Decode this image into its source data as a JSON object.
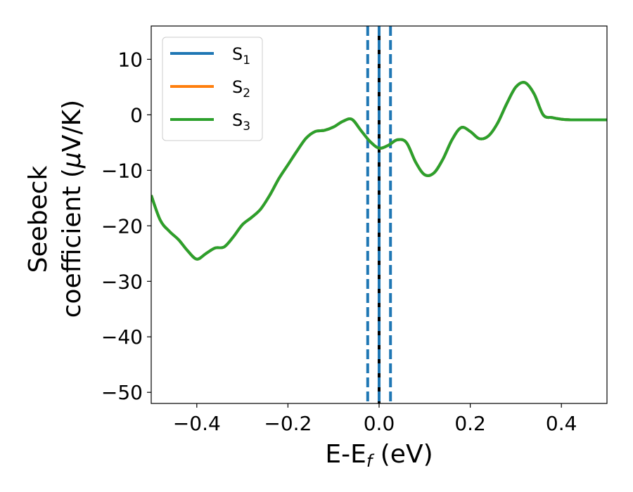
{
  "chart_data": {
    "type": "line",
    "xlim": [
      -0.5,
      0.5
    ],
    "ylim": [
      -52,
      16
    ],
    "x_ticks": [
      -0.4,
      -0.2,
      0.0,
      0.2,
      0.4
    ],
    "x_tick_labels": [
      "−0.4",
      "−0.2",
      "0.0",
      "0.2",
      "0.4"
    ],
    "y_ticks": [
      10,
      0,
      -10,
      -20,
      -30,
      -40,
      -50
    ],
    "y_tick_labels": [
      "10",
      "0",
      "−10",
      "−20",
      "−30",
      "−40",
      "−50"
    ],
    "xlabel_main": "E-E",
    "xlabel_sub": "f",
    "xlabel_unit": " (eV)",
    "ylabel_line1": "Seebeck",
    "ylabel_line2_pre": "coefficient  (",
    "ylabel_mu": "μ",
    "ylabel_line2_post": "V/K)",
    "grid": false,
    "legend_position": "top-left",
    "series": [
      {
        "name": "S",
        "sub": "1",
        "color": "#1f77b4",
        "x": [
          -0.5,
          -0.48,
          -0.46,
          -0.44,
          -0.42,
          -0.4,
          -0.38,
          -0.36,
          -0.34,
          -0.32,
          -0.3,
          -0.28,
          -0.26,
          -0.24,
          -0.22,
          -0.2,
          -0.18,
          -0.16,
          -0.14,
          -0.12,
          -0.1,
          -0.08,
          -0.06,
          -0.04,
          -0.02,
          0.0,
          0.02,
          0.04,
          0.06,
          0.08,
          0.1,
          0.12,
          0.14,
          0.16,
          0.18,
          0.2,
          0.22,
          0.24,
          0.26,
          0.28,
          0.3,
          0.32,
          0.34,
          0.36,
          0.38,
          0.4,
          0.42,
          0.44,
          0.46,
          0.48,
          0.5
        ],
        "y": [
          -14.5,
          -19.0,
          -21.0,
          -22.5,
          -24.5,
          -26.0,
          -25.0,
          -24.0,
          -23.8,
          -22.0,
          -19.8,
          -18.5,
          -17.0,
          -14.5,
          -11.5,
          -9.0,
          -6.5,
          -4.2,
          -3.0,
          -2.8,
          -2.2,
          -1.2,
          -0.8,
          -2.8,
          -4.8,
          -6.0,
          -5.5,
          -4.5,
          -5.0,
          -8.5,
          -10.8,
          -10.5,
          -8.0,
          -4.5,
          -2.3,
          -3.0,
          -4.3,
          -3.8,
          -1.5,
          2.0,
          5.0,
          5.8,
          3.8,
          0.0,
          -0.5,
          -0.8,
          -0.9,
          -0.9,
          -0.9,
          -0.9,
          -0.9
        ]
      },
      {
        "name": "S",
        "sub": "2",
        "color": "#ff7f0e"
      },
      {
        "name": "S",
        "sub": "3",
        "color": "#2ca02c"
      }
    ],
    "vlines": [
      {
        "x": -0.025,
        "style": "dashed",
        "color": "#1f77b4"
      },
      {
        "x": 0.0,
        "style": "solid",
        "color": "#000000"
      },
      {
        "x": 0.0,
        "style": "dashed",
        "color": "#1f77b4"
      },
      {
        "x": 0.025,
        "style": "dashed",
        "color": "#1f77b4"
      }
    ]
  }
}
